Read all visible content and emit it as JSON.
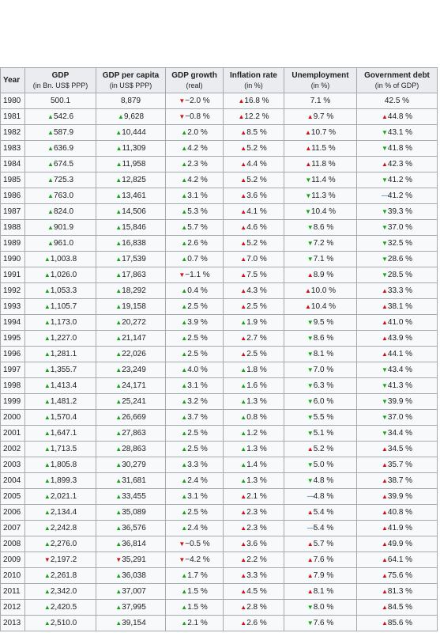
{
  "headers": [
    {
      "main": "Year",
      "sub": ""
    },
    {
      "main": "GDP",
      "sub": "(in Bn. US$ PPP)"
    },
    {
      "main": "GDP per capita",
      "sub": "(in US$ PPP)"
    },
    {
      "main": "GDP growth",
      "sub": "(real)"
    },
    {
      "main": "Inflation rate",
      "sub": "(in %)"
    },
    {
      "main": "Unemployment",
      "sub": "(in %)"
    },
    {
      "main": "Government debt",
      "sub": "(in % of GDP)"
    }
  ],
  "rows": [
    [
      "1980",
      "500.1",
      "8,879",
      "−2.0 %",
      "16.8 %",
      "7.1 %",
      "42.5 %"
    ],
    [
      "1981",
      "542.6",
      "9,628",
      "−0.8 %",
      "12.2 %",
      "9.7 %",
      "44.8 %"
    ],
    [
      "1982",
      "587.9",
      "10,444",
      "2.0 %",
      "8.5 %",
      "10.7 %",
      "43.1 %"
    ],
    [
      "1983",
      "636.9",
      "11,309",
      "4.2 %",
      "5.2 %",
      "11.5 %",
      "41.8 %"
    ],
    [
      "1984",
      "674.5",
      "11,958",
      "2.3 %",
      "4.4 %",
      "11.8 %",
      "42.3 %"
    ],
    [
      "1985",
      "725.3",
      "12,825",
      "4.2 %",
      "5.2 %",
      "11.4 %",
      "41.2 %"
    ],
    [
      "1986",
      "763.0",
      "13,461",
      "3.1 %",
      "3.6 %",
      "11.3 %",
      "41.2 %"
    ],
    [
      "1987",
      "824.0",
      "14,506",
      "5.3 %",
      "4.1 %",
      "10.4 %",
      "39.3 %"
    ],
    [
      "1988",
      "901.9",
      "15,846",
      "5.7 %",
      "4.6 %",
      "8.6 %",
      "37.0 %"
    ],
    [
      "1989",
      "961.0",
      "16,838",
      "2.6 %",
      "5.2 %",
      "7.2 %",
      "32.5 %"
    ],
    [
      "1990",
      "1,003.8",
      "17,539",
      "0.7 %",
      "7.0 %",
      "7.1 %",
      "28.6 %"
    ],
    [
      "1991",
      "1,026.0",
      "17,863",
      "−1.1 %",
      "7.5 %",
      "8.9 %",
      "28.5 %"
    ],
    [
      "1992",
      "1,053.3",
      "18,292",
      "0.4 %",
      "4.3 %",
      "10.0 %",
      "33.3 %"
    ],
    [
      "1993",
      "1,105.7",
      "19,158",
      "2.5 %",
      "2.5 %",
      "10.4 %",
      "38.1 %"
    ],
    [
      "1994",
      "1,173.0",
      "20,272",
      "3.9 %",
      "1.9 %",
      "9.5 %",
      "41.0 %"
    ],
    [
      "1995",
      "1,227.0",
      "21,147",
      "2.5 %",
      "2.7 %",
      "8.6 %",
      "43.9 %"
    ],
    [
      "1996",
      "1,281.1",
      "22,026",
      "2.5 %",
      "2.5 %",
      "8.1 %",
      "44.1 %"
    ],
    [
      "1997",
      "1,355.7",
      "23,249",
      "4.0 %",
      "1.8 %",
      "7.0 %",
      "43.4 %"
    ],
    [
      "1998",
      "1,413.4",
      "24,171",
      "3.1 %",
      "1.6 %",
      "6.3 %",
      "41.3 %"
    ],
    [
      "1999",
      "1,481.2",
      "25,241",
      "3.2 %",
      "1.3 %",
      "6.0 %",
      "39.9 %"
    ],
    [
      "2000",
      "1,570.4",
      "26,669",
      "3.7 %",
      "0.8 %",
      "5.5 %",
      "37.0 %"
    ],
    [
      "2001",
      "1,647.1",
      "27,863",
      "2.5 %",
      "1.2 %",
      "5.1 %",
      "34.4 %"
    ],
    [
      "2002",
      "1,713.5",
      "28,863",
      "2.5 %",
      "1.3 %",
      "5.2 %",
      "34.5 %"
    ],
    [
      "2003",
      "1,805.8",
      "30,279",
      "3.3 %",
      "1.4 %",
      "5.0 %",
      "35.7 %"
    ],
    [
      "2004",
      "1,899.3",
      "31,681",
      "2.4 %",
      "1.3 %",
      "4.8 %",
      "38.7 %"
    ],
    [
      "2005",
      "2,021.1",
      "33,455",
      "3.1 %",
      "2.1 %",
      "4.8 %",
      "39.9 %"
    ],
    [
      "2006",
      "2,134.4",
      "35,089",
      "2.5 %",
      "2.3 %",
      "5.4 %",
      "40.8 %"
    ],
    [
      "2007",
      "2,242.8",
      "36,576",
      "2.4 %",
      "2.3 %",
      "5.4 %",
      "41.9 %"
    ],
    [
      "2008",
      "2,276.0",
      "36,814",
      "−0.5 %",
      "3.6 %",
      "5.7 %",
      "49.9 %"
    ],
    [
      "2009",
      "2,197.2",
      "35,291",
      "−4.2 %",
      "2.2 %",
      "7.6 %",
      "64.1 %"
    ],
    [
      "2010",
      "2,261.8",
      "36,038",
      "1.7 %",
      "3.3 %",
      "7.9 %",
      "75.6 %"
    ],
    [
      "2011",
      "2,342.0",
      "37,007",
      "1.5 %",
      "4.5 %",
      "8.1 %",
      "81.3 %"
    ],
    [
      "2012",
      "2,420.5",
      "37,995",
      "1.5 %",
      "2.8 %",
      "8.0 %",
      "84.5 %"
    ],
    [
      "2013",
      "2,510.0",
      "39,154",
      "2.1 %",
      "2.6 %",
      "7.6 %",
      "85.6 %"
    ]
  ],
  "arrows": [
    [
      "",
      "",
      "down-bad",
      "up-bad",
      "",
      ""
    ],
    [
      "up-good",
      "up-good",
      "down-bad",
      "up-bad",
      "up-bad",
      "up-bad"
    ],
    [
      "up-good",
      "up-good",
      "up-good",
      "up-bad",
      "up-bad",
      "down-good"
    ],
    [
      "up-good",
      "up-good",
      "up-good",
      "up-bad",
      "up-bad",
      "down-good"
    ],
    [
      "up-good",
      "up-good",
      "up-good",
      "up-bad",
      "up-bad",
      "up-bad"
    ],
    [
      "up-good",
      "up-good",
      "up-good",
      "up-bad",
      "down-good",
      "down-good"
    ],
    [
      "up-good",
      "up-good",
      "up-good",
      "up-bad",
      "down-good",
      "flat"
    ],
    [
      "up-good",
      "up-good",
      "up-good",
      "up-bad",
      "down-good",
      "down-good"
    ],
    [
      "up-good",
      "up-good",
      "up-good",
      "up-bad",
      "down-good",
      "down-good"
    ],
    [
      "up-good",
      "up-good",
      "up-good",
      "up-bad",
      "down-good",
      "down-good"
    ],
    [
      "up-good",
      "up-good",
      "up-good",
      "up-bad",
      "down-good",
      "down-good"
    ],
    [
      "up-good",
      "up-good",
      "down-bad",
      "up-bad",
      "up-bad",
      "down-good"
    ],
    [
      "up-good",
      "up-good",
      "up-good",
      "up-bad",
      "up-bad",
      "up-bad"
    ],
    [
      "up-good",
      "up-good",
      "up-good",
      "up-bad",
      "up-bad",
      "up-bad"
    ],
    [
      "up-good",
      "up-good",
      "up-good",
      "up-good",
      "down-good",
      "up-bad"
    ],
    [
      "up-good",
      "up-good",
      "up-good",
      "up-bad",
      "down-good",
      "up-bad"
    ],
    [
      "up-good",
      "up-good",
      "up-good",
      "up-bad",
      "down-good",
      "up-bad"
    ],
    [
      "up-good",
      "up-good",
      "up-good",
      "up-good",
      "down-good",
      "down-good"
    ],
    [
      "up-good",
      "up-good",
      "up-good",
      "up-good",
      "down-good",
      "down-good"
    ],
    [
      "up-good",
      "up-good",
      "up-good",
      "up-good",
      "down-good",
      "down-good"
    ],
    [
      "up-good",
      "up-good",
      "up-good",
      "up-good",
      "down-good",
      "down-good"
    ],
    [
      "up-good",
      "up-good",
      "up-good",
      "up-good",
      "down-good",
      "down-good"
    ],
    [
      "up-good",
      "up-good",
      "up-good",
      "up-good",
      "up-bad",
      "up-bad"
    ],
    [
      "up-good",
      "up-good",
      "up-good",
      "up-good",
      "down-good",
      "up-bad"
    ],
    [
      "up-good",
      "up-good",
      "up-good",
      "up-good",
      "down-good",
      "up-bad"
    ],
    [
      "up-good",
      "up-good",
      "up-good",
      "up-bad",
      "flat",
      "up-bad"
    ],
    [
      "up-good",
      "up-good",
      "up-good",
      "up-bad",
      "up-bad",
      "up-bad"
    ],
    [
      "up-good",
      "up-good",
      "up-good",
      "up-bad",
      "flat",
      "up-bad"
    ],
    [
      "up-good",
      "up-good",
      "down-bad",
      "up-bad",
      "up-bad",
      "up-bad"
    ],
    [
      "down-bad",
      "down-bad",
      "down-bad",
      "up-bad",
      "up-bad",
      "up-bad"
    ],
    [
      "up-good",
      "up-good",
      "up-good",
      "up-bad",
      "up-bad",
      "up-bad"
    ],
    [
      "up-good",
      "up-good",
      "up-good",
      "up-bad",
      "up-bad",
      "up-bad"
    ],
    [
      "up-good",
      "up-good",
      "up-good",
      "up-bad",
      "down-good",
      "up-bad"
    ],
    [
      "up-good",
      "up-good",
      "up-good",
      "up-bad",
      "down-good",
      "up-bad"
    ]
  ],
  "colors": {
    "good": "#14a314",
    "bad": "#d20f0f",
    "flat": "#3c7bb5",
    "header_bg": "#eaecf0",
    "cell_bg": "#f8f9fa",
    "border": "#a2a9b1"
  }
}
